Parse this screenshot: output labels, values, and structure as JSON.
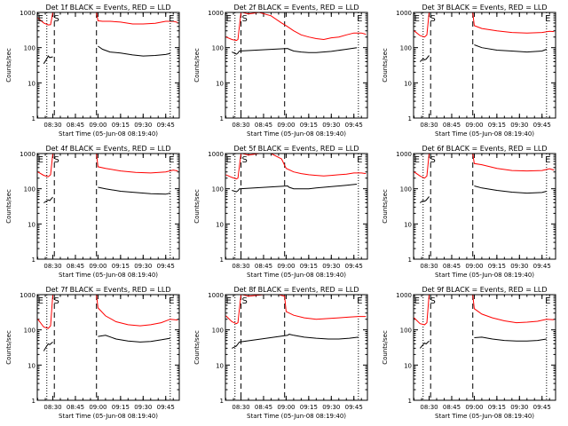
{
  "figure": {
    "shared": {
      "ylabel": "Counts/sec",
      "xlabel": "Start Time (05-Jun-08 08:19:40)",
      "x_ticks": [
        "08:30",
        "08:45",
        "09:00",
        "09:15",
        "09:30",
        "09:45"
      ],
      "y_ticks": [
        "1",
        "10",
        "100",
        "1000"
      ],
      "colors": {
        "events": "#000000",
        "lld": "#ff0000",
        "axes": "#000000"
      }
    }
  },
  "chart_data": [
    {
      "type": "line",
      "title": "Det 1f BLACK = Events, RED = LLD",
      "xlabel": "Start Time (05-Jun-08 08:19:40)",
      "ylabel": "Counts/sec",
      "x_unit": "time",
      "xlim": [
        "08:19:40",
        "09:54:00"
      ],
      "ylim": [
        1,
        1000
      ],
      "y_scale": "log",
      "markers": {
        "dotted": [
          "08:26",
          "09:48"
        ],
        "dashed": [
          "08:31",
          "08:59"
        ],
        "labels": {
          "S": "08:30",
          "E_left": "08:20",
          "E_right": "09:47"
        }
      },
      "series": [
        {
          "color": "#ff0000",
          "x": [
            "08:20",
            "08:24",
            "08:27",
            "08:28:30",
            "08:30",
            "08:31",
            "08:59",
            "09:00",
            "09:03",
            "09:08",
            "09:15",
            "09:23",
            "09:30",
            "09:38",
            "09:45",
            "09:50",
            "09:53"
          ],
          "y": [
            700,
            500,
            440,
            450,
            2000,
            1000,
            1000,
            580,
            560,
            560,
            530,
            470,
            470,
            490,
            560,
            560,
            520
          ]
        },
        {
          "color": "#000000",
          "x": [
            "08:24",
            "08:26",
            "08:27",
            "08:28",
            "08:30",
            "08:59",
            "09:00",
            "09:03",
            "09:08",
            "09:15",
            "09:23",
            "09:30",
            "09:38",
            "09:45",
            "09:48"
          ],
          "y": [
            35,
            48,
            58,
            52,
            55,
            null,
            110,
            90,
            75,
            70,
            62,
            58,
            60,
            64,
            68
          ]
        }
      ]
    },
    {
      "type": "line",
      "title": "Det 2f BLACK = Events, RED = LLD",
      "xlabel": "Start Time (05-Jun-08 08:19:40)",
      "ylabel": "Counts/sec",
      "x_unit": "time",
      "xlim": [
        "08:19:40",
        "09:54:00"
      ],
      "ylim": [
        1,
        1000
      ],
      "y_scale": "log",
      "markers": {
        "dotted": [
          "08:26",
          "09:48"
        ],
        "dashed": [
          "08:30",
          "08:59"
        ],
        "labels": {
          "S": "08:30",
          "E_left": "08:20",
          "E_right": "09:47"
        }
      },
      "series": [
        {
          "color": "#ff0000",
          "x": [
            "08:20",
            "08:24",
            "08:27",
            "08:28",
            "08:30",
            "08:31",
            "08:35",
            "08:42",
            "08:50",
            "08:57",
            "09:00",
            "09:05",
            "09:10",
            "09:15",
            "09:20",
            "09:25",
            "09:30",
            "09:35",
            "09:40",
            "09:45",
            "09:50",
            "09:53"
          ],
          "y": [
            200,
            170,
            160,
            170,
            1000,
            1000,
            900,
            1000,
            800,
            500,
            420,
            300,
            230,
            200,
            180,
            170,
            190,
            200,
            230,
            260,
            260,
            240
          ]
        },
        {
          "color": "#000000",
          "x": [
            "08:24",
            "08:27",
            "08:28",
            "08:29",
            "09:01",
            "09:02",
            "09:05",
            "09:10",
            "09:15",
            "09:20",
            "09:30",
            "09:40",
            "09:47"
          ],
          "y": [
            75,
            65,
            70,
            80,
            95,
            90,
            80,
            75,
            72,
            72,
            78,
            90,
            100
          ]
        }
      ]
    },
    {
      "type": "line",
      "title": "Det 3f BLACK = Events, RED = LLD",
      "xlabel": "Start Time (05-Jun-08 08:19:40)",
      "ylabel": "Counts/sec",
      "x_unit": "time",
      "xlim": [
        "08:19:40",
        "09:54:00"
      ],
      "ylim": [
        1,
        1000
      ],
      "y_scale": "log",
      "markers": {
        "dotted": [
          "08:26",
          "09:48"
        ],
        "dashed": [
          "08:31",
          "08:59"
        ],
        "labels": {
          "S": "08:30",
          "E_left": "08:20",
          "E_right": "09:47"
        }
      },
      "series": [
        {
          "color": "#ff0000",
          "x": [
            "08:20",
            "08:24",
            "08:27",
            "08:28:30",
            "08:30",
            "08:31",
            "08:59",
            "09:00",
            "09:05",
            "09:15",
            "09:25",
            "09:35",
            "09:45",
            "09:50",
            "09:53"
          ],
          "y": [
            300,
            220,
            200,
            230,
            1500,
            1000,
            1000,
            420,
            350,
            300,
            270,
            260,
            270,
            290,
            285
          ]
        },
        {
          "color": "#000000",
          "x": [
            "08:24",
            "08:26",
            "08:27",
            "08:28",
            "08:30",
            "08:59",
            "09:00",
            "09:05",
            "09:15",
            "09:25",
            "09:35",
            "09:45",
            "09:48"
          ],
          "y": [
            40,
            48,
            45,
            47,
            60,
            null,
            120,
            100,
            85,
            80,
            75,
            80,
            90
          ]
        }
      ]
    },
    {
      "type": "line",
      "title": "Det 4f BLACK = Events, RED = LLD",
      "xlabel": "Start Time (05-Jun-08 08:19:40)",
      "ylabel": "Counts/sec",
      "x_unit": "time",
      "xlim": [
        "08:19:40",
        "09:54:00"
      ],
      "ylim": [
        1,
        1000
      ],
      "y_scale": "log",
      "markers": {
        "dotted": [
          "08:26",
          "09:48"
        ],
        "dashed": [
          "08:31",
          "08:59"
        ],
        "labels": {
          "S": "08:30",
          "E_left": "08:20",
          "E_right": "09:47"
        }
      },
      "series": [
        {
          "color": "#ff0000",
          "x": [
            "08:20",
            "08:24",
            "08:27",
            "08:28:30",
            "08:30",
            "08:31",
            "08:59",
            "09:00",
            "09:05",
            "09:15",
            "09:25",
            "09:35",
            "09:45",
            "09:50",
            "09:53"
          ],
          "y": [
            300,
            240,
            220,
            250,
            1500,
            1000,
            1000,
            420,
            380,
            320,
            290,
            280,
            300,
            340,
            320
          ]
        },
        {
          "color": "#000000",
          "x": [
            "08:24",
            "08:26",
            "08:27",
            "08:28",
            "08:30",
            "08:59",
            "09:00",
            "09:05",
            "09:15",
            "09:25",
            "09:35",
            "09:45",
            "09:48"
          ],
          "y": [
            40,
            45,
            48,
            46,
            58,
            null,
            110,
            100,
            85,
            78,
            72,
            70,
            75
          ]
        }
      ]
    },
    {
      "type": "line",
      "title": "Det 5f BLACK = Events, RED = LLD",
      "xlabel": "Start Time (05-Jun-08 08:19:40)",
      "ylabel": "Counts/sec",
      "x_unit": "time",
      "xlim": [
        "08:19:40",
        "09:54:00"
      ],
      "ylim": [
        1,
        1000
      ],
      "y_scale": "log",
      "markers": {
        "dotted": [
          "08:26",
          "09:48"
        ],
        "dashed": [
          "08:30",
          "08:59"
        ],
        "labels": {
          "S": "08:30",
          "E_left": "08:20",
          "E_right": "09:47"
        }
      },
      "series": [
        {
          "color": "#ff0000",
          "x": [
            "08:20",
            "08:24",
            "08:27",
            "08:28",
            "08:30",
            "08:31",
            "08:35",
            "08:42",
            "08:50",
            "08:57",
            "09:00",
            "09:05",
            "09:10",
            "09:15",
            "09:20",
            "09:25",
            "09:30",
            "09:35",
            "09:40",
            "09:45",
            "09:50",
            "09:53"
          ],
          "y": [
            250,
            210,
            190,
            200,
            1000,
            1000,
            900,
            1000,
            1000,
            700,
            380,
            300,
            270,
            250,
            240,
            230,
            240,
            250,
            260,
            280,
            280,
            270
          ]
        },
        {
          "color": "#000000",
          "x": [
            "08:24",
            "08:27",
            "08:28",
            "08:29",
            "09:01",
            "09:02",
            "09:05",
            "09:10",
            "09:15",
            "09:20",
            "09:30",
            "09:40",
            "09:47"
          ],
          "y": [
            90,
            82,
            88,
            100,
            120,
            110,
            100,
            100,
            100,
            105,
            115,
            125,
            135
          ]
        }
      ]
    },
    {
      "type": "line",
      "title": "Det 6f BLACK = Events, RED = LLD",
      "xlabel": "Start Time (05-Jun-08 08:19:40)",
      "ylabel": "Counts/sec",
      "x_unit": "time",
      "xlim": [
        "08:19:40",
        "09:54:00"
      ],
      "ylim": [
        1,
        1000
      ],
      "y_scale": "log",
      "markers": {
        "dotted": [
          "08:26",
          "09:48"
        ],
        "dashed": [
          "08:31",
          "08:59"
        ],
        "labels": {
          "S": "08:30",
          "E_left": "08:20",
          "E_right": "09:47"
        }
      },
      "series": [
        {
          "color": "#ff0000",
          "x": [
            "08:20",
            "08:24",
            "08:27",
            "08:28:30",
            "08:30",
            "08:31",
            "08:59",
            "09:00",
            "09:05",
            "09:15",
            "09:25",
            "09:35",
            "09:45",
            "09:50",
            "09:53"
          ],
          "y": [
            300,
            230,
            200,
            230,
            1500,
            1000,
            1000,
            520,
            480,
            380,
            330,
            320,
            330,
            370,
            340
          ]
        },
        {
          "color": "#000000",
          "x": [
            "08:24",
            "08:26",
            "08:27",
            "08:28",
            "08:30",
            "08:59",
            "09:00",
            "09:05",
            "09:15",
            "09:25",
            "09:35",
            "09:45",
            "09:48"
          ],
          "y": [
            40,
            46,
            44,
            47,
            60,
            null,
            120,
            105,
            90,
            80,
            75,
            78,
            85
          ]
        }
      ]
    },
    {
      "type": "line",
      "title": "Det 7f BLACK = Events, RED = LLD",
      "xlabel": "Start Time (05-Jun-08 08:19:40)",
      "ylabel": "Counts/sec",
      "x_unit": "time",
      "xlim": [
        "08:19:40",
        "09:54:00"
      ],
      "ylim": [
        1,
        1000
      ],
      "y_scale": "log",
      "markers": {
        "dotted": [
          "08:26",
          "09:48"
        ],
        "dashed": [
          "08:31",
          "08:59"
        ],
        "labels": {
          "S": "08:30",
          "E_left": "08:20",
          "E_right": "09:47"
        }
      },
      "series": [
        {
          "color": "#ff0000",
          "x": [
            "08:20",
            "08:24",
            "08:27",
            "08:28:30",
            "08:30",
            "08:31",
            "08:59",
            "09:00",
            "09:05",
            "09:12",
            "09:20",
            "09:28",
            "09:35",
            "09:42",
            "09:48",
            "09:53"
          ],
          "y": [
            200,
            120,
            110,
            130,
            1500,
            1000,
            1000,
            420,
            250,
            170,
            140,
            130,
            140,
            160,
            200,
            190
          ]
        },
        {
          "color": "#000000",
          "x": [
            "08:24",
            "08:26",
            "08:27",
            "08:28",
            "08:30",
            "08:59",
            "09:00",
            "09:05",
            "09:12",
            "09:20",
            "09:28",
            "09:35",
            "09:42",
            "09:48"
          ],
          "y": [
            25,
            35,
            40,
            38,
            45,
            null,
            65,
            70,
            55,
            48,
            45,
            47,
            52,
            58
          ]
        }
      ]
    },
    {
      "type": "line",
      "title": "Det 8f BLACK = Events, RED = LLD",
      "xlabel": "Start Time (05-Jun-08 08:19:40)",
      "ylabel": "Counts/sec",
      "x_unit": "time",
      "xlim": [
        "08:19:40",
        "09:54:00"
      ],
      "ylim": [
        1,
        1000
      ],
      "y_scale": "log",
      "markers": {
        "dotted": [
          "08:26",
          "09:48"
        ],
        "dashed": [
          "08:30",
          "08:59"
        ],
        "labels": {
          "S": "08:30",
          "E_left": "08:20",
          "E_right": "09:47"
        }
      },
      "series": [
        {
          "color": "#ff0000",
          "x": [
            "08:20",
            "08:24",
            "08:27",
            "08:28",
            "08:30",
            "08:31",
            "08:35",
            "08:45",
            "08:55",
            "08:59",
            "09:00",
            "09:05",
            "09:12",
            "09:20",
            "09:28",
            "09:35",
            "09:42",
            "09:48",
            "09:53"
          ],
          "y": [
            250,
            170,
            150,
            160,
            1000,
            1000,
            900,
            1000,
            1000,
            900,
            330,
            260,
            220,
            200,
            210,
            220,
            230,
            240,
            240
          ]
        },
        {
          "color": "#000000",
          "x": [
            "08:24",
            "08:27",
            "08:28",
            "08:29",
            "09:01",
            "09:02",
            "09:05",
            "09:12",
            "09:20",
            "09:28",
            "09:35",
            "09:42",
            "09:48"
          ],
          "y": [
            30,
            35,
            40,
            45,
            70,
            75,
            70,
            62,
            58,
            55,
            55,
            58,
            62
          ]
        }
      ]
    },
    {
      "type": "line",
      "title": "Det 9f BLACK = Events, RED = LLD",
      "xlabel": "Start Time (05-Jun-08 08:19:40)",
      "ylabel": "Counts/sec",
      "x_unit": "time",
      "xlim": [
        "08:19:40",
        "09:54:00"
      ],
      "ylim": [
        1,
        1000
      ],
      "y_scale": "log",
      "markers": {
        "dotted": [
          "08:26",
          "09:48"
        ],
        "dashed": [
          "08:31",
          "08:59"
        ],
        "labels": {
          "S": "08:30",
          "E_left": "08:20",
          "E_right": "09:47"
        }
      },
      "series": [
        {
          "color": "#ff0000",
          "x": [
            "08:20",
            "08:24",
            "08:27",
            "08:28:30",
            "08:30",
            "08:31",
            "08:59",
            "09:00",
            "09:05",
            "09:12",
            "09:20",
            "09:28",
            "09:35",
            "09:42",
            "09:48",
            "09:53"
          ],
          "y": [
            220,
            150,
            140,
            160,
            1500,
            1000,
            1000,
            400,
            280,
            220,
            180,
            160,
            165,
            175,
            200,
            195
          ]
        },
        {
          "color": "#000000",
          "x": [
            "08:24",
            "08:26",
            "08:27",
            "08:28",
            "08:30",
            "08:59",
            "09:00",
            "09:05",
            "09:12",
            "09:20",
            "09:28",
            "09:35",
            "09:42",
            "09:48"
          ],
          "y": [
            30,
            38,
            42,
            40,
            48,
            null,
            60,
            62,
            55,
            50,
            48,
            48,
            50,
            55
          ]
        }
      ]
    }
  ]
}
